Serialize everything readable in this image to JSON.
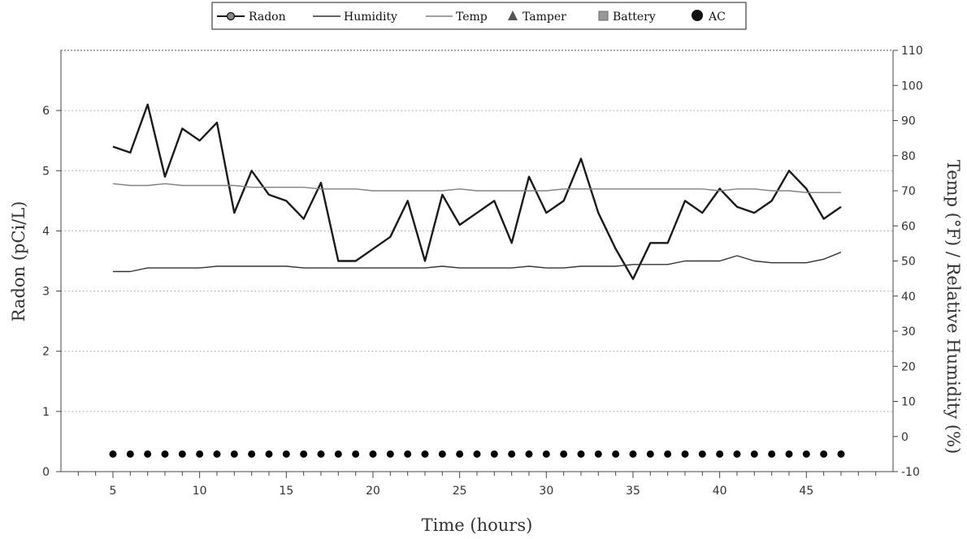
{
  "chart_data": {
    "type": "line",
    "legend": {
      "placement": "top-center",
      "entries": [
        "Radon",
        "Humidity",
        "Temp",
        "Tamper",
        "Battery",
        "AC"
      ]
    },
    "xlabel": "Time (hours)",
    "ylabel": "Radon (pCi/L)",
    "y2label": "Temp (°F) / Relative Humidity (%)",
    "xlim": [
      2,
      50
    ],
    "ylim": [
      0,
      7
    ],
    "y2lim": [
      -10,
      110
    ],
    "x_ticks": [
      5,
      10,
      15,
      20,
      25,
      30,
      35,
      40,
      45
    ],
    "y_ticks": [
      0,
      1,
      2,
      3,
      4,
      5,
      6
    ],
    "y2_ticks": [
      -10,
      0,
      10,
      20,
      30,
      40,
      50,
      60,
      70,
      80,
      90,
      100,
      110
    ],
    "gridlines": "dotted horizontal",
    "x": [
      5,
      6,
      7,
      8,
      9,
      10,
      11,
      12,
      13,
      14,
      15,
      16,
      17,
      18,
      19,
      20,
      21,
      22,
      23,
      24,
      25,
      26,
      27,
      28,
      29,
      30,
      31,
      32,
      33,
      34,
      35,
      36,
      37,
      38,
      39,
      40,
      41,
      42,
      43,
      44,
      45,
      46,
      47
    ],
    "series": [
      {
        "name": "Radon",
        "axis": "left",
        "color": "#1a1a1a",
        "values": [
          5.4,
          5.3,
          6.1,
          4.9,
          5.7,
          5.5,
          5.8,
          4.3,
          5.0,
          4.6,
          4.5,
          4.2,
          4.8,
          3.5,
          3.5,
          3.7,
          3.9,
          4.5,
          3.5,
          4.6,
          4.1,
          4.3,
          4.5,
          3.8,
          4.9,
          4.3,
          4.5,
          5.2,
          4.3,
          3.7,
          3.2,
          3.8,
          3.8,
          4.5,
          4.3,
          4.7,
          4.4,
          4.3,
          4.5,
          5.0,
          4.7,
          4.2,
          4.4
        ]
      },
      {
        "name": "Humidity",
        "axis": "right",
        "color": "#333333",
        "values": [
          47,
          47,
          48,
          48,
          48,
          48,
          48.5,
          48.5,
          48.5,
          48.5,
          48.5,
          48,
          48,
          48,
          48,
          48,
          48,
          48,
          48,
          48.5,
          48,
          48,
          48,
          48,
          48.5,
          48,
          48,
          48.5,
          48.5,
          48.5,
          49,
          49,
          49,
          50,
          50,
          50,
          51.5,
          50,
          49.5,
          49.5,
          49.5,
          50.5,
          52.5
        ]
      },
      {
        "name": "Temp",
        "axis": "right",
        "color": "#808080",
        "values": [
          72,
          71.5,
          71.5,
          72,
          71.5,
          71.5,
          71.5,
          71.5,
          71,
          71,
          71,
          71,
          70.5,
          70.5,
          70.5,
          70,
          70,
          70,
          70,
          70,
          70.5,
          70,
          70,
          70,
          70,
          70,
          70.5,
          70.5,
          70.5,
          70.5,
          70.5,
          70.5,
          70.5,
          70.5,
          70.5,
          70,
          70.5,
          70.5,
          70,
          70,
          69.5,
          69.5,
          69.5
        ]
      },
      {
        "name": "AC",
        "axis": "right",
        "color": "#000000",
        "values": [
          -5,
          -5,
          -5,
          -5,
          -5,
          -5,
          -5,
          -5,
          -5,
          -5,
          -5,
          -5,
          -5,
          -5,
          -5,
          -5,
          -5,
          -5,
          -5,
          -5,
          -5,
          -5,
          -5,
          -5,
          -5,
          -5,
          -5,
          -5,
          -5,
          -5,
          -5,
          -5,
          -5,
          -5,
          -5,
          -5,
          -5,
          -5,
          -5,
          -5,
          -5,
          -5,
          -5
        ]
      }
    ]
  }
}
